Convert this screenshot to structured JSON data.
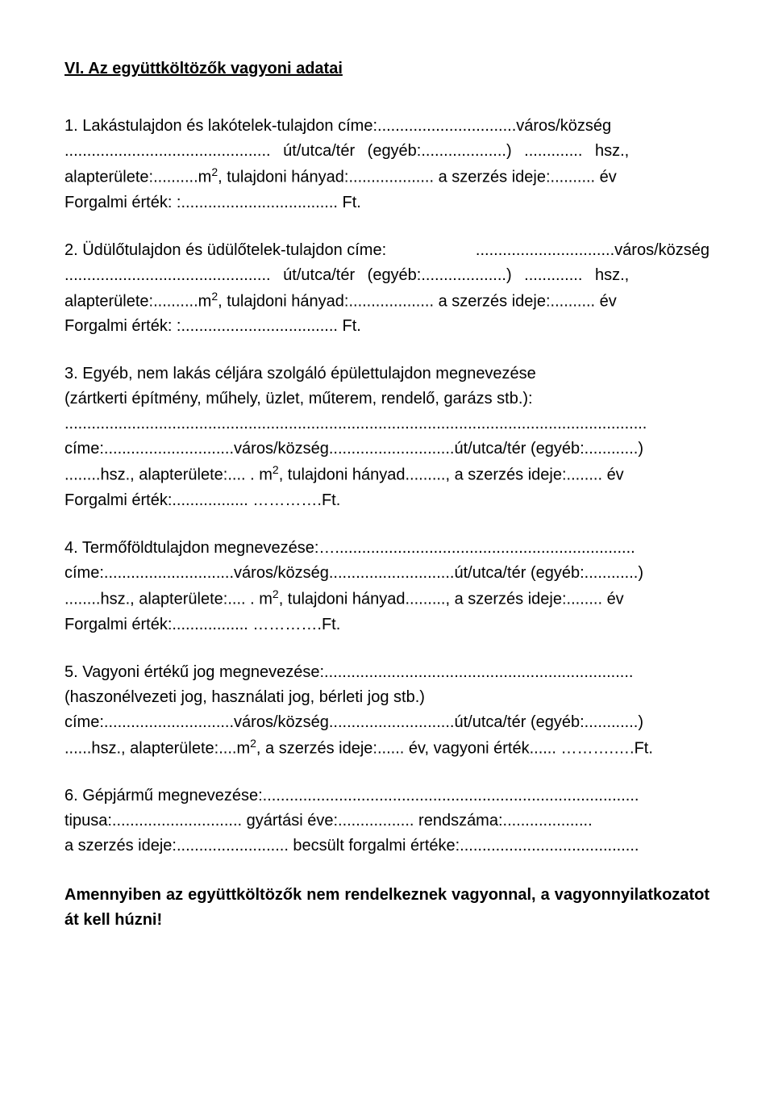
{
  "title": "VI. Az együttköltözők vagyoni adatai",
  "items": {
    "i1": {
      "line1": "1. Lakástulajdon és lakótelek-tulajdon címe:...............................város/község",
      "line2a": ".............................................. út/utca/tér (egyéb:...................) ............. hsz.,",
      "line2b": "alapterülete:..........m",
      "line2c": ", tulajdoni hányad:................... a szerzés ideje:.......... év",
      "line3": "Forgalmi érték: :................................... Ft."
    },
    "i2": {
      "line1a": "2. Üdülőtulajdon és üdülőtelek-tulajdon címe:",
      "line1b": "...............................város/község",
      "line2a": ".............................................. út/utca/tér (egyéb:...................) ............. hsz.,",
      "line2b": "alapterülete:..........m",
      "line2c": ", tulajdoni hányad:................... a szerzés ideje:.......... év",
      "line3": "Forgalmi érték: :................................... Ft."
    },
    "i3": {
      "line1": "3. Egyéb, nem lakás céljára szolgáló épülettulajdon megnevezése",
      "line2": "  (zártkerti építmény, műhely, üzlet, műterem, rendelő, garázs stb.):",
      "line3": "..................................................................................................................................",
      "line4": "címe:.............................város/község............................út/utca/tér (egyéb:............)",
      "line5a": "........hsz., alapterülete:.... . m",
      "line5b": ",  tulajdoni hányad........., a szerzés ideje:........ év",
      "line6": "Forgalmi érték:................. ………….Ft."
    },
    "i4": {
      "line1": "4. Termőföldtulajdon megnevezése:…...................................................................",
      "line2": "címe:.............................város/község............................út/utca/tér (egyéb:............)",
      "line3a": "........hsz., alapterülete:.... . m",
      "line3b": ",  tulajdoni hányad........., a szerzés ideje:........ év",
      "line4": "Forgalmi érték:................. ………….Ft."
    },
    "i5": {
      "line1": "5. Vagyoni értékű jog megnevezése:.....................................................................",
      "line2": "(haszonélvezeti jog, használati jog, bérleti jog stb.)",
      "line3": "címe:.............................város/község............................út/utca/tér   (egyéb:............)",
      "line4a": "......hsz., alapterülete:....m",
      "line4b": ",  a szerzés ideje:...... év,  vagyoni érték...... ……….….Ft."
    },
    "i6": {
      "line1": "6. Gépjármű megnevezése:....................................................................................",
      "line2": " tipusa:............................. gyártási éve:.................     rendszáma:....................",
      "line3": " a szerzés ideje:......................... becsült forgalmi értéke:........................................"
    }
  },
  "final": "Amennyiben az együttköltözők nem rendelkeznek vagyonnal, a vagyonnyilatkozatot át kell húzni!"
}
